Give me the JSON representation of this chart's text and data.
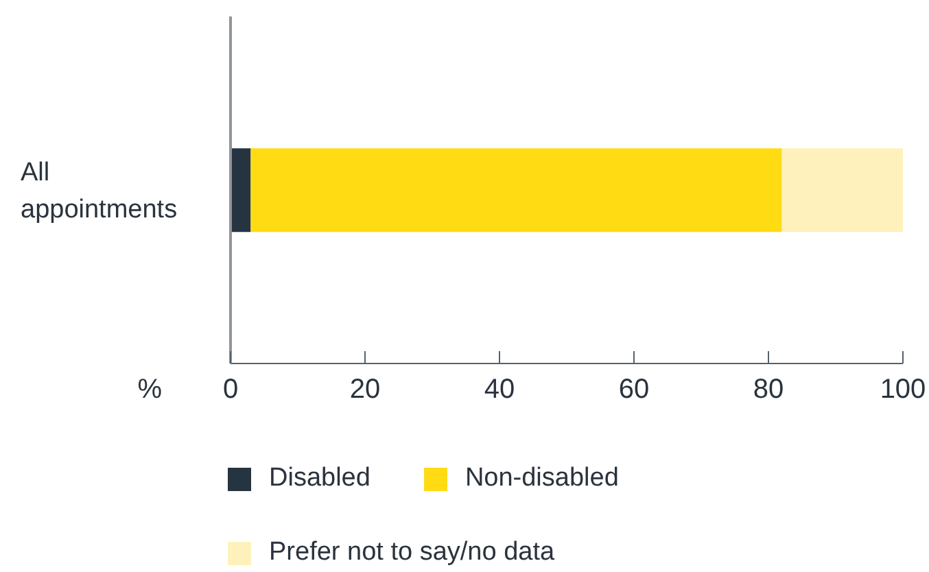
{
  "chart_data": {
    "type": "bar",
    "orientation": "horizontal",
    "stacked": true,
    "categories": [
      "All appointments"
    ],
    "series": [
      {
        "name": "Disabled",
        "color": "#263340",
        "values": [
          3
        ]
      },
      {
        "name": "Non-disabled",
        "color": "#ffdb14",
        "values": [
          79
        ]
      },
      {
        "name": "Prefer not to say/no data",
        "color": "#fef1bb",
        "values": [
          18
        ]
      }
    ],
    "xlabel": "%",
    "xlim": [
      0,
      100
    ],
    "xticks": [
      0,
      20,
      40,
      60,
      80,
      100
    ],
    "legend": "bottom"
  }
}
